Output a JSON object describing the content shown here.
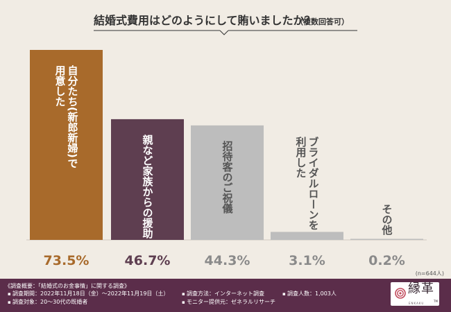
{
  "chart_data": {
    "type": "bar",
    "title": "結婚式費用はどのようにして賄いましたか？",
    "title_note": "（複数回答可）",
    "categories": [
      "自分たち（新郎新婦）で用意した",
      "親など家族からの援助",
      "招待客のご祝儀",
      "ブライダルローンを利用した",
      "その他"
    ],
    "category_lines": [
      [
        "自分たち(新郎新婦)で",
        "用意した"
      ],
      [
        "親など家族からの援助"
      ],
      [
        "招待客のご祝儀"
      ],
      [
        "ブライダルローンを",
        "利用した"
      ],
      [
        "その他"
      ]
    ],
    "values": [
      73.5,
      46.7,
      44.3,
      3.1,
      0.2
    ],
    "value_labels": [
      "73.5%",
      "46.7%",
      "44.3%",
      "3.1%",
      "0.2%"
    ],
    "colors": [
      "#a86a2b",
      "#5e3e50",
      "#bdbdbd",
      "#bdbdbd",
      "#bdbdbd"
    ],
    "label_colors": [
      "#ffffff",
      "#ffffff",
      "#555555",
      "#555555",
      "#555555"
    ],
    "value_colors": [
      "#a86a2b",
      "#5e3e50",
      "#8a8a8a",
      "#8a8a8a",
      "#8a8a8a"
    ],
    "sample_note": "(n=644人)",
    "ylim": [
      0,
      80
    ],
    "grid": false,
    "legend": "none"
  },
  "footer": {
    "title": "《調査概要：「結婚式のお金事情」に関する調査》",
    "items": [
      "調査期間：2022年11月18日（金）〜2022年11月19日（土）",
      "調査方法：インターネット調査",
      "調査人数：1,003人",
      "調査対象：20〜30代の既婚者",
      "モニター提供元：ゼネラルリサーチ"
    ]
  },
  "logo": {
    "text": "縁革",
    "sub": "ENKAKU",
    "tm": "TM",
    "icon": "knot-logo-icon"
  }
}
